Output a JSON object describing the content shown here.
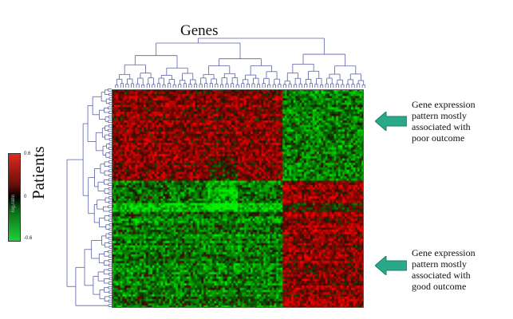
{
  "chart_data": {
    "type": "heatmap",
    "title": "",
    "xlabel": "Genes",
    "ylabel": "Patients",
    "colorbar": {
      "max": "0.6",
      "mid": "0",
      "min": "-0.6",
      "label": "log₂ratio",
      "high_color": "#e02a1e",
      "mid_color": "#000000",
      "low_color": "#1ed23a"
    },
    "clusters": {
      "gene_groups": [
        "left gene cluster",
        "right gene cluster"
      ],
      "patient_groups": [
        "poor-outcome group",
        "good-outcome group"
      ],
      "pattern": [
        [
          0.45,
          -0.4
        ],
        [
          -0.4,
          0.45
        ]
      ]
    },
    "annotations": [
      {
        "text": "Gene expression pattern mostly associated with poor outcome",
        "lines": [
          "Gene expression",
          "pattern mostly",
          "associated with",
          "poor outcome"
        ]
      },
      {
        "text": "Gene expression pattern mostly associated with good outcome",
        "lines": [
          "Gene expression",
          "pattern mostly",
          "associated with",
          "good outcome"
        ]
      }
    ],
    "arrow_color": "#2aa88a",
    "dendrogram_color": "#5a5fa8"
  }
}
